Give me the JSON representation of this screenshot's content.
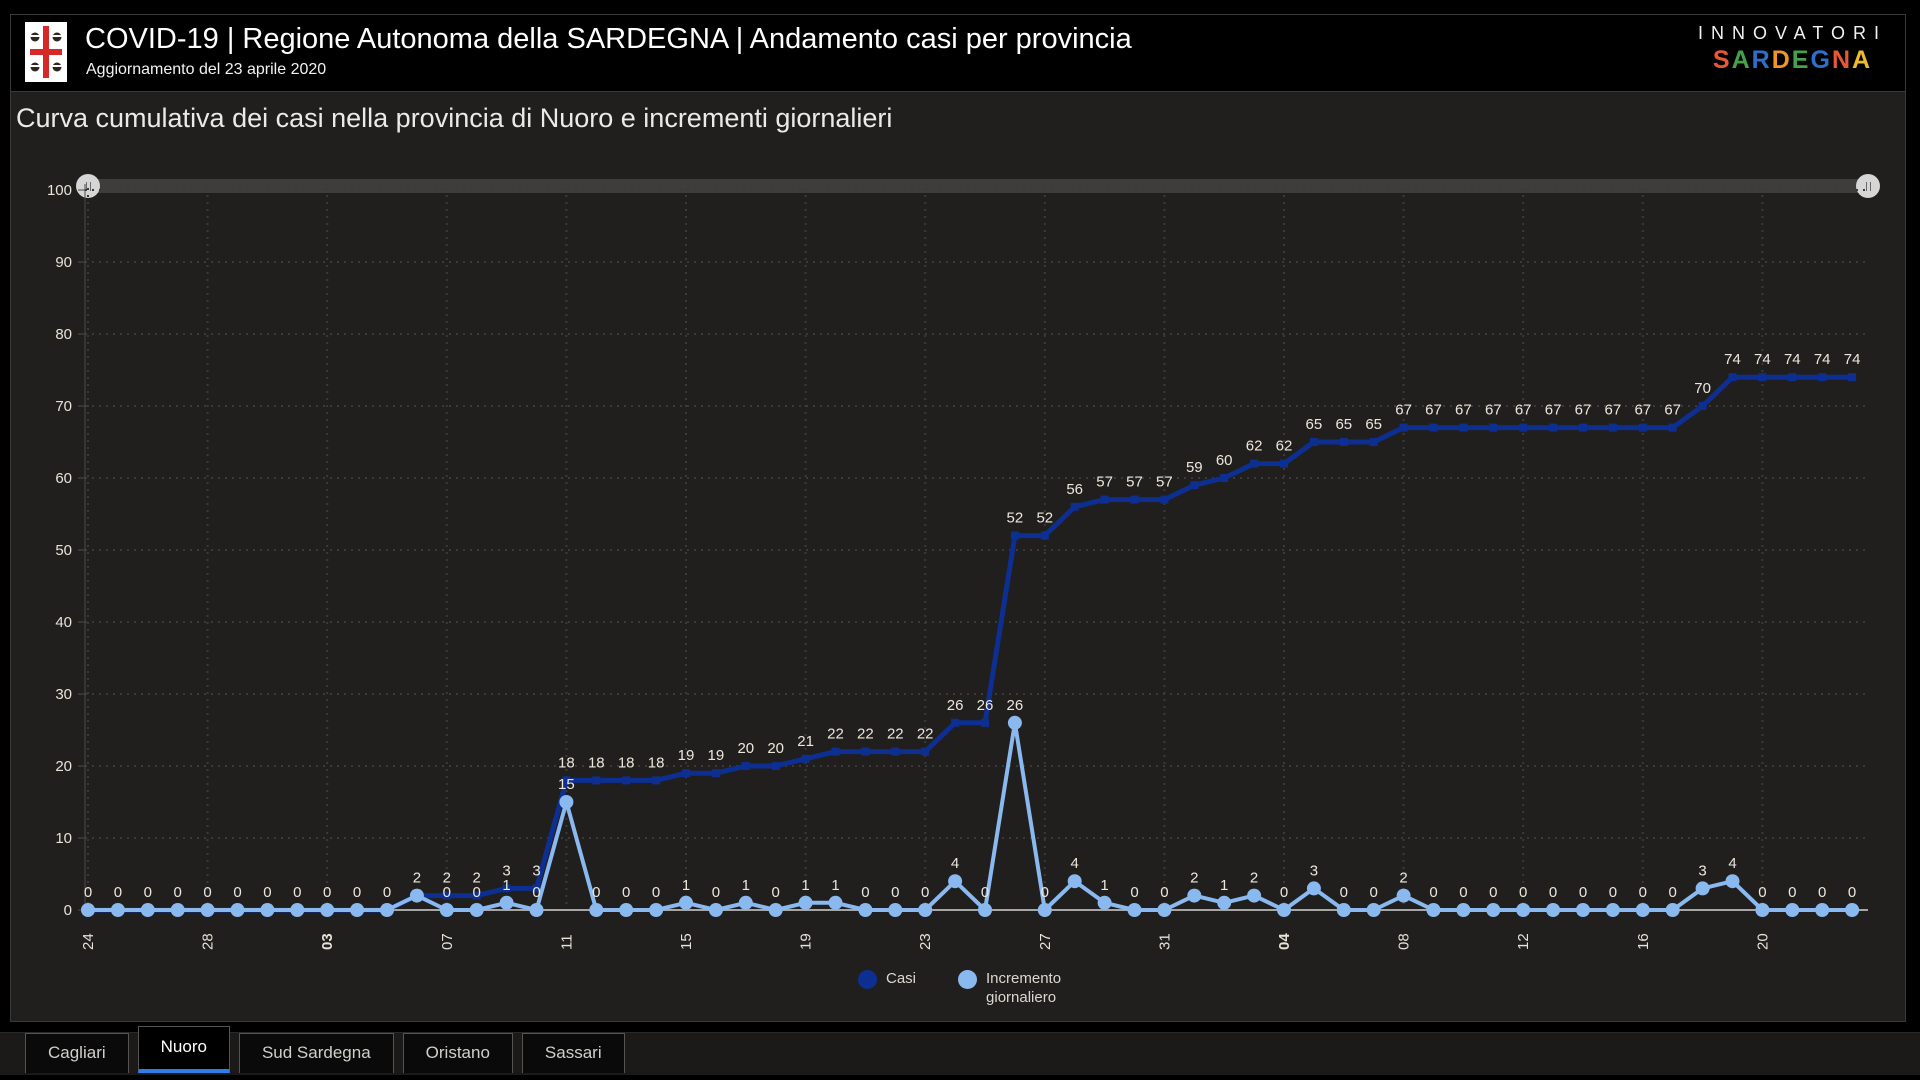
{
  "header": {
    "title": "COVID-19 | Regione Autonoma della SARDEGNA | Andamento casi per provincia",
    "subtitle": "Aggiornamento del 23 aprile 2020",
    "logo": "stemma-sardegna",
    "brand": {
      "line1": "INNOVATORI",
      "line2_letters": [
        {
          "ch": "S",
          "color": "#e85834"
        },
        {
          "ch": "A",
          "color": "#45a24b"
        },
        {
          "ch": "R",
          "color": "#2e6fca"
        },
        {
          "ch": "D",
          "color": "#ef9426"
        },
        {
          "ch": "E",
          "color": "#45a24b"
        },
        {
          "ch": "G",
          "color": "#2e6fca"
        },
        {
          "ch": "N",
          "color": "#e85834"
        },
        {
          "ch": "A",
          "color": "#eebc2a"
        }
      ]
    }
  },
  "page_title": "Curva cumulativa dei casi nella provincia di Nuoro e incrementi giornalieri",
  "chart_data": {
    "type": "line",
    "n_points": 60,
    "x_tick_every": 4,
    "x_tick_labels": [
      "24",
      "28",
      "03",
      "07",
      "11",
      "15",
      "19",
      "23",
      "27",
      "31",
      "04",
      "08",
      "12",
      "16",
      "20"
    ],
    "x_tick_bold": [
      "03",
      "04"
    ],
    "ylim": [
      0,
      100
    ],
    "y_tick_step": 10,
    "grid": "dotted",
    "legend_position": "bottom-center",
    "series": [
      {
        "name": "Casi",
        "color": "#0d2f92",
        "marker": "square",
        "values": [
          0,
          0,
          0,
          0,
          0,
          0,
          0,
          0,
          0,
          0,
          0,
          2,
          2,
          2,
          3,
          3,
          18,
          18,
          18,
          18,
          19,
          19,
          20,
          20,
          21,
          22,
          22,
          22,
          22,
          26,
          26,
          52,
          52,
          56,
          57,
          57,
          57,
          59,
          60,
          62,
          62,
          65,
          65,
          65,
          67,
          67,
          67,
          67,
          67,
          67,
          67,
          67,
          67,
          67,
          70,
          74,
          74,
          74,
          74,
          74
        ]
      },
      {
        "name": "Incremento giornaliero",
        "color": "#8ab9f0",
        "marker": "circle",
        "values": [
          0,
          0,
          0,
          0,
          0,
          0,
          0,
          0,
          0,
          0,
          0,
          2,
          0,
          0,
          1,
          0,
          15,
          0,
          0,
          0,
          1,
          0,
          1,
          0,
          1,
          1,
          0,
          0,
          0,
          4,
          0,
          26,
          0,
          4,
          1,
          0,
          0,
          2,
          1,
          2,
          0,
          3,
          0,
          0,
          2,
          0,
          0,
          0,
          0,
          0,
          0,
          0,
          0,
          0,
          3,
          4,
          0,
          0,
          0,
          0
        ]
      }
    ]
  },
  "legend": {
    "items": [
      {
        "label": "Casi",
        "color": "#0d2f92"
      },
      {
        "label": "Incremento\ngiornaliero",
        "color": "#8ab9f0"
      }
    ]
  },
  "slider": {
    "left_handle": true,
    "right_handle": true
  },
  "tabs": {
    "items": [
      {
        "label": "Cagliari",
        "active": false
      },
      {
        "label": "Nuoro",
        "active": true
      },
      {
        "label": "Sud Sardegna",
        "active": false
      },
      {
        "label": "Oristano",
        "active": false
      },
      {
        "label": "Sassari",
        "active": false
      }
    ]
  },
  "colors": {
    "panel_bg": "#201f1e",
    "axis_label": "#e8e3d7",
    "data_label": "#ece7db",
    "gridline": "#3b3a38",
    "x_axis_line": "#a6a6a6",
    "active_tab_underline": "#2e7eea"
  }
}
